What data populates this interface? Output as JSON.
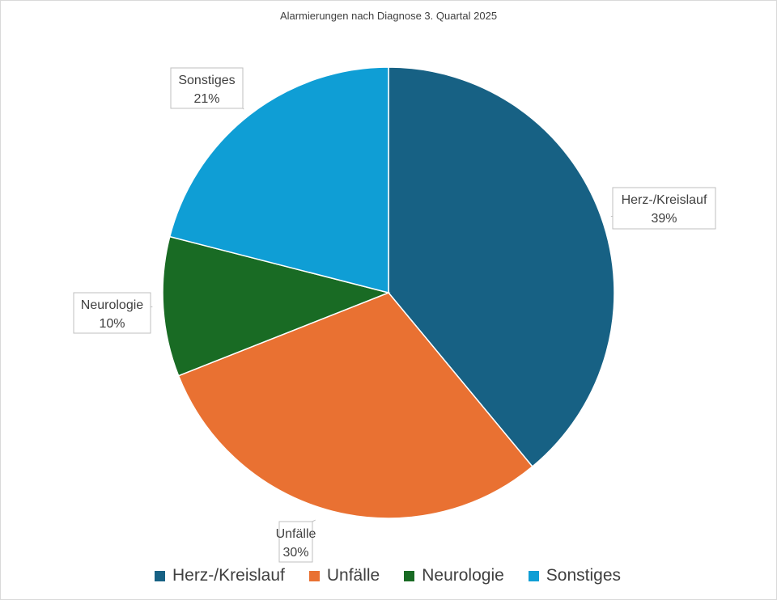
{
  "chart_data": {
    "type": "pie",
    "title": "Alarmierungen nach Diagnose 3. Quartal 2025",
    "categories": [
      "Herz-/Kreislauf",
      "Unfälle",
      "Neurologie",
      "Sonstiges"
    ],
    "values": [
      39,
      30,
      10,
      21
    ],
    "labels": [
      "39%",
      "30%",
      "10%",
      "21%"
    ],
    "colors": [
      "#176184",
      "#e97132",
      "#196b24",
      "#0f9ed5"
    ],
    "legend": "bottom",
    "start_angle": "12 o'clock",
    "direction": "clockwise"
  }
}
